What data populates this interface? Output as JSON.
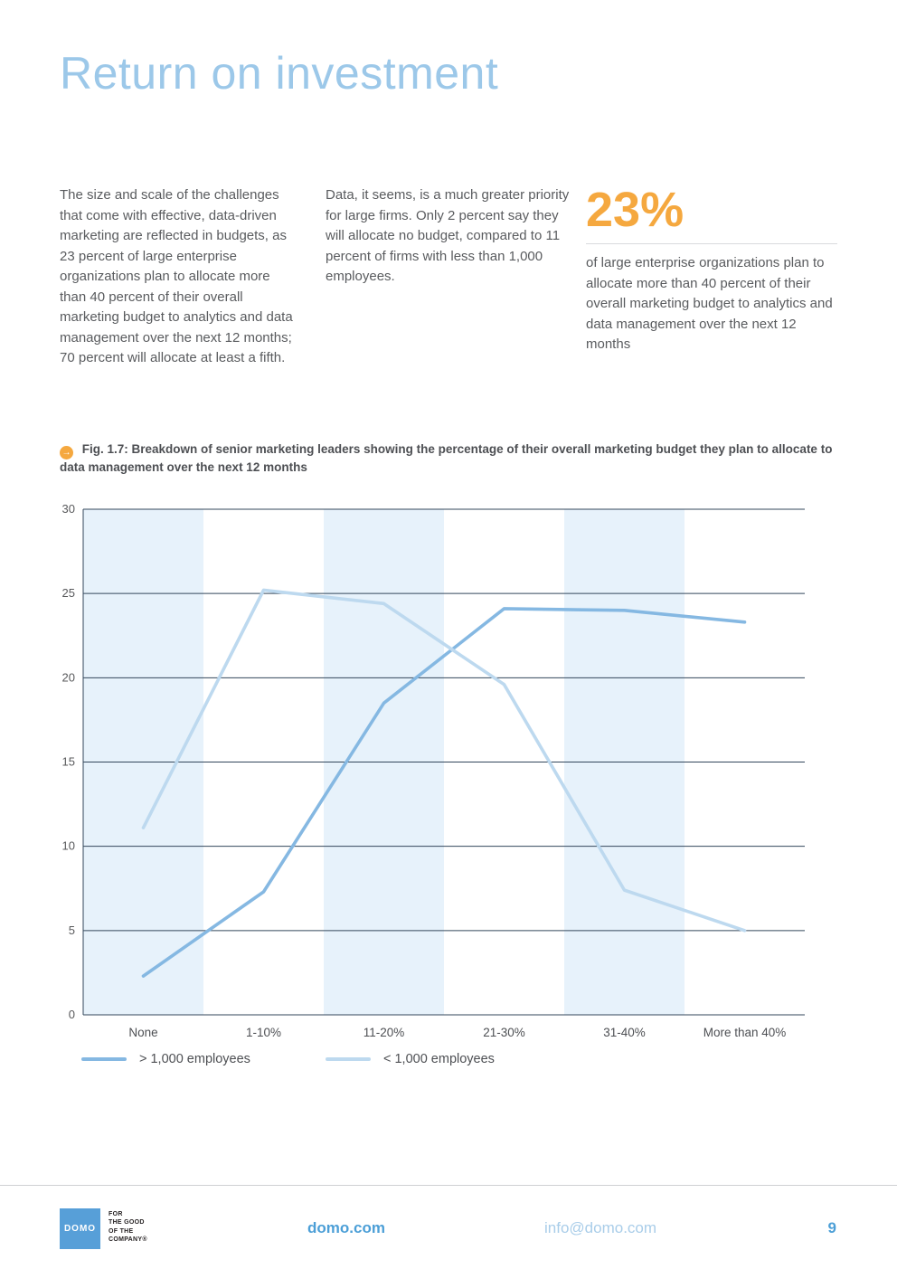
{
  "page": {
    "title": "Return on investment"
  },
  "intro": {
    "col1": "The size and scale of the challenges that come with effective, data-driven marketing are reflected in budgets, as 23 percent of large enterprise organizations plan to allocate more than 40 percent of their overall marketing budget to analytics and data management over the next 12 months; 70 percent will allocate at least a fifth.",
    "col2": "Data, it seems, is a much greater priority for large firms. Only 2 percent say they will allocate no budget, compared to 11 percent of firms with less than 1,000 employees.",
    "stat_value": "23%",
    "stat_caption": "of large enterprise organizations plan to allocate more than 40 percent of their overall marketing budget to analytics and data management over the next 12 months"
  },
  "figure": {
    "icon": "arrow-circle-icon",
    "icon_glyph": "→",
    "caption": "Fig. 1.7: Breakdown of senior marketing leaders showing the percentage of their overall marketing budget they plan to allocate to data management over the next 12 months"
  },
  "chart_data": {
    "type": "line",
    "categories": [
      "None",
      "1-10%",
      "11-20%",
      "21-30%",
      "31-40%",
      "More than 40%"
    ],
    "series": [
      {
        "name": "> 1,000 employees",
        "color": "#85b8e2",
        "values": [
          2.3,
          7.3,
          18.5,
          24.1,
          24.0,
          23.3
        ]
      },
      {
        "name": "< 1,000 employees",
        "color": "#bdd9ef",
        "values": [
          11.1,
          25.2,
          24.4,
          19.6,
          7.4,
          5.0
        ]
      }
    ],
    "ylim": [
      0,
      30
    ],
    "yticks": [
      0,
      5,
      10,
      15,
      20,
      25,
      30
    ],
    "grid": true,
    "grid_color": "#33475b",
    "band_color": "#e7f2fb",
    "banded_columns": [
      0,
      2,
      4
    ],
    "legend_position": "bottom"
  },
  "footer": {
    "logo_text": "DOMO",
    "tagline_lines": [
      "FOR",
      "THE GOOD",
      "OF THE",
      "COMPANY®"
    ],
    "website": "domo.com",
    "email": "info@domo.com",
    "page_number": "9"
  },
  "colors": {
    "title": "#9cc8e9",
    "accent_orange": "#f5a83f",
    "body_text": "#595b5e",
    "grid": "#33475b",
    "link_blue": "#4c9fd7",
    "email_blue": "#a9cde9"
  }
}
